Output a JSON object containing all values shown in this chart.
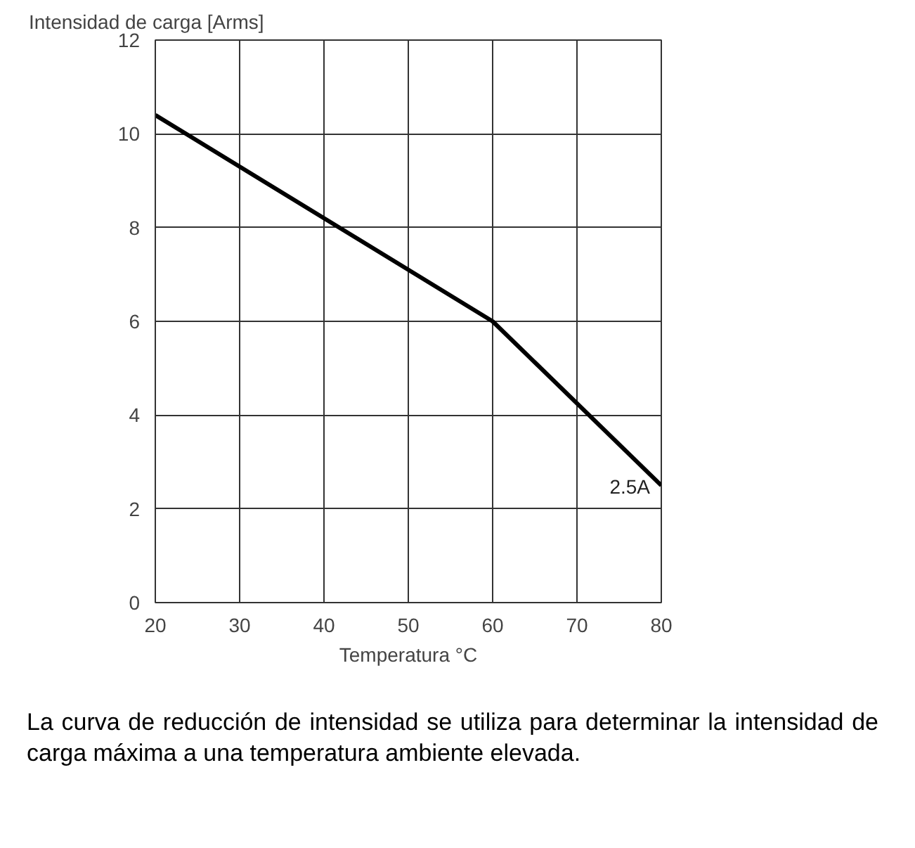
{
  "chart_data": {
    "type": "line",
    "xlabel": "Temperatura °C",
    "ylabel": "Intensidad de carga [Arms]",
    "x": [
      20,
      60,
      80
    ],
    "series": [
      {
        "color": "#000000",
        "values": [
          10.4,
          6,
          2.5
        ]
      }
    ],
    "xlim": [
      20,
      80
    ],
    "xticks": [
      20,
      30,
      40,
      50,
      60,
      70,
      80
    ],
    "ylim": [
      0,
      12
    ],
    "yticks": [
      0,
      2,
      4,
      6,
      8,
      10,
      12
    ],
    "grid": true,
    "marker": "none",
    "line_style": "solid",
    "annotations": [
      {
        "text": "2.5A",
        "x": 80,
        "y": 2.5
      },
      "La curva de reducción de intensidad se utiliza para determinar la intensidad de carga máxima a una temperatura ambiente elevada."
    ]
  }
}
